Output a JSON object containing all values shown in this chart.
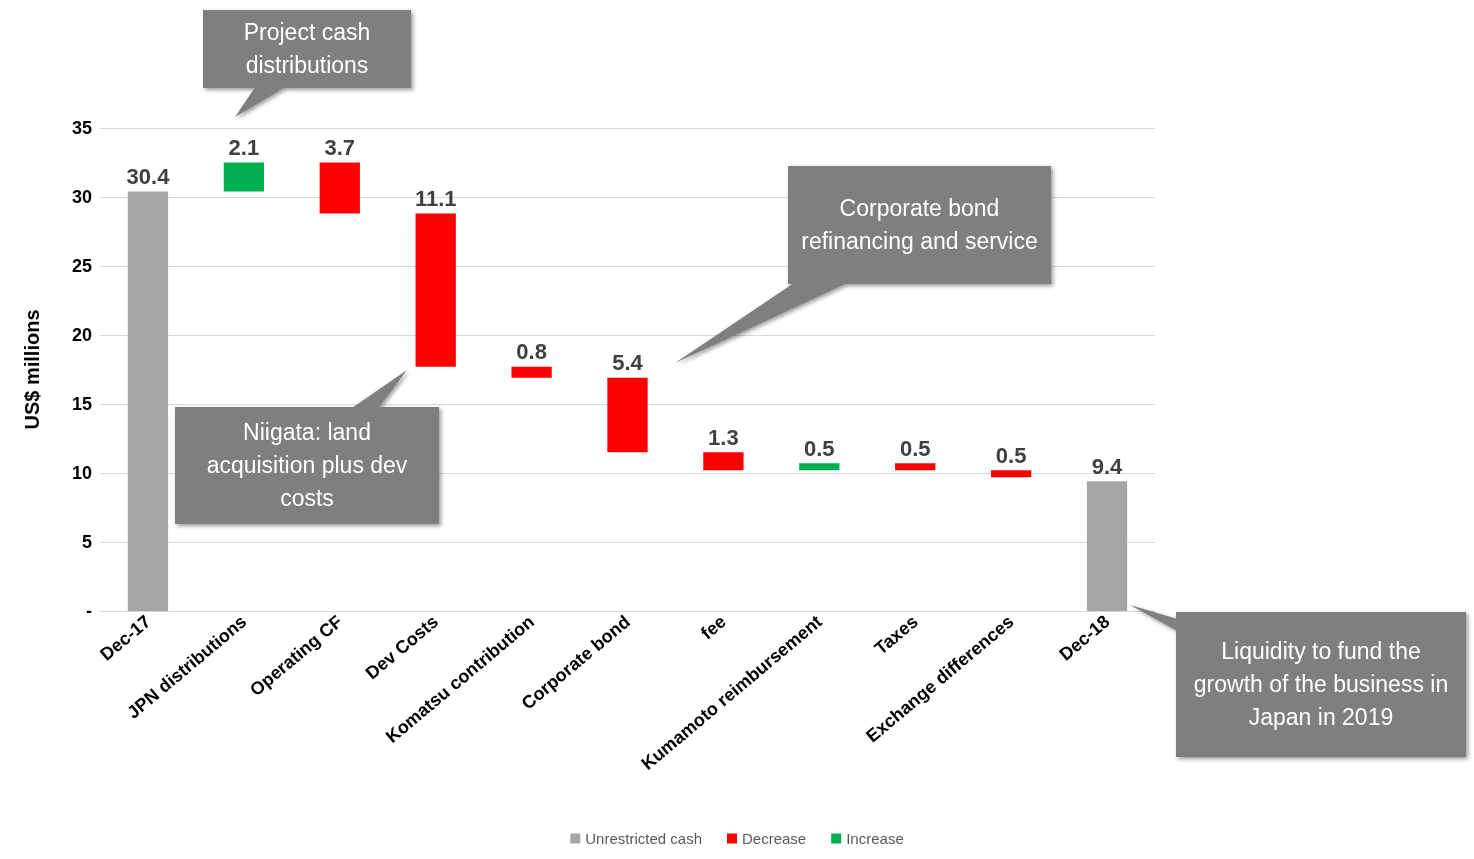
{
  "chart_data": {
    "type": "bar",
    "ylabel": "US$ millions",
    "categories": [
      "Dec-17",
      "JPN distributions",
      "Operating CF",
      "Dev Costs",
      "Komatsu contribution",
      "Corporate bond",
      "fee",
      "Kumamoto reimbursement",
      "Taxes",
      "Exchange differences",
      "Dec-18"
    ],
    "series": [
      {
        "name": "Unrestricted cash",
        "color": "#a5a5a5",
        "values": [
          30.4,
          null,
          null,
          null,
          null,
          null,
          null,
          null,
          null,
          null,
          9.4
        ],
        "base": [
          0,
          null,
          null,
          null,
          null,
          null,
          null,
          null,
          null,
          null,
          0
        ]
      },
      {
        "name": "Decrease",
        "color": "#ff0000",
        "values": [
          null,
          null,
          3.7,
          11.1,
          0.8,
          5.4,
          1.3,
          null,
          0.5,
          0.5,
          null
        ],
        "base": [
          null,
          null,
          28.8,
          17.7,
          16.9,
          11.5,
          10.2,
          null,
          10.2,
          9.7,
          null
        ]
      },
      {
        "name": "Increase",
        "color": "#00b050",
        "values": [
          null,
          2.1,
          null,
          null,
          null,
          null,
          null,
          0.5,
          null,
          null,
          null
        ],
        "base": [
          null,
          30.4,
          null,
          null,
          null,
          null,
          null,
          10.2,
          null,
          null,
          null
        ]
      }
    ],
    "data_labels": true,
    "ylim": [
      0,
      35
    ],
    "yticks": [
      {
        "value": 0,
        "label": "-"
      },
      5,
      10,
      15,
      20,
      25,
      30,
      35
    ],
    "grid": "y",
    "legend": "bottom",
    "annotations": [
      "Project cash distributions",
      "Corporate bond refinancing and service",
      "Niigata: land acquisition plus dev costs",
      "Liquidity to fund the growth of the business in Japan in 2019"
    ]
  }
}
